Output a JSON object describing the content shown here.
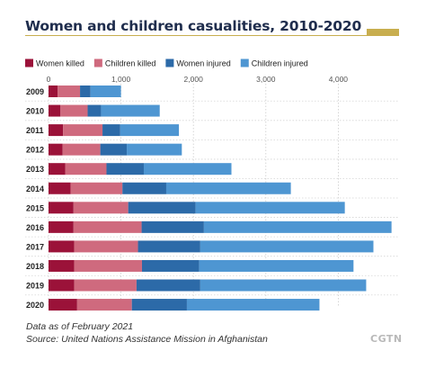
{
  "colors": {
    "women_killed": "#9b1239",
    "children_killed": "#cf6a7e",
    "women_injured": "#2c6aa8",
    "children_injured": "#4e96d2",
    "title_underline": "#c8ae4f",
    "title_text": "#1f2d4d",
    "grid": "#cccccc"
  },
  "chart_data": {
    "type": "bar",
    "orientation": "horizontal",
    "stacked": true,
    "title": "Women and children casualities, 2010-2020",
    "xlabel": "",
    "ylabel": "",
    "xlim": [
      0,
      4700
    ],
    "xticks": [
      0,
      1000,
      2000,
      3000,
      4000
    ],
    "xtick_labels": [
      "0",
      "1,000",
      "2,000",
      "3,000",
      "4,000"
    ],
    "grid": true,
    "legend_position": "top-left",
    "categories": [
      "2009",
      "2010",
      "2011",
      "2012",
      "2013",
      "2014",
      "2015",
      "2016",
      "2017",
      "2018",
      "2019",
      "2020"
    ],
    "series": [
      {
        "name": "Women killed",
        "color": "#9b1239",
        "values": [
          125,
          165,
          200,
          195,
          230,
          305,
          345,
          345,
          355,
          355,
          355,
          395
        ]
      },
      {
        "name": "Children  killed",
        "color": "#cf6a7e",
        "values": [
          310,
          375,
          545,
          520,
          570,
          715,
          755,
          940,
          880,
          935,
          860,
          755
        ]
      },
      {
        "name": "Women injured",
        "color": "#2c6aa8",
        "values": [
          145,
          185,
          245,
          365,
          515,
          605,
          930,
          860,
          860,
          790,
          880,
          760
        ]
      },
      {
        "name": "Children injured",
        "color": "#4e96d2",
        "values": [
          420,
          810,
          810,
          760,
          1210,
          1720,
          2060,
          2590,
          2390,
          2130,
          2290,
          1830
        ]
      }
    ]
  },
  "footnote": {
    "line1": "Data as of February 2021",
    "line2": "Source: United Nations Assistance Mission in Afghanistan"
  },
  "logo": "CGTN"
}
